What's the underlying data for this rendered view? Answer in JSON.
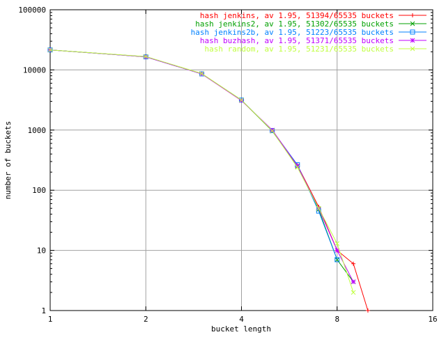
{
  "chart_data": {
    "type": "line",
    "title": "",
    "xlabel": "bucket length",
    "ylabel": "number of buckets",
    "x_scale": "log2",
    "y_scale": "log10",
    "xlim": [
      1,
      16
    ],
    "ylim": [
      1,
      100000
    ],
    "x_ticks": [
      1,
      2,
      4,
      8,
      16
    ],
    "x_tick_labels": [
      "1",
      "2",
      "4",
      "8",
      "16"
    ],
    "y_ticks": [
      1,
      10,
      100,
      1000,
      10000,
      100000
    ],
    "y_tick_labels": [
      "1",
      "10",
      "100",
      "1000",
      "10000",
      "100000"
    ],
    "grid": true,
    "legend_position": "top-right",
    "series": [
      {
        "name": "hash jenkins, av 1.95, 51394/65535 buckets",
        "color": "#ff0000",
        "marker": "plus",
        "x": [
          1,
          2,
          3,
          4,
          5,
          6,
          7,
          8,
          9,
          10
        ],
        "y": [
          21500,
          16500,
          8600,
          3100,
          990,
          260,
          53,
          10,
          6,
          1
        ]
      },
      {
        "name": "hash jenkins2, av 1.95, 51302/65535 buckets",
        "color": "#00a000",
        "marker": "cross",
        "x": [
          1,
          2,
          3,
          4,
          5,
          6,
          7,
          8,
          9
        ],
        "y": [
          21500,
          16600,
          8650,
          3150,
          960,
          250,
          48,
          7,
          3
        ]
      },
      {
        "name": "hash jenkins2b, av 1.95, 51223/65535 buckets",
        "color": "#0080ff",
        "marker": "square",
        "x": [
          1,
          2,
          3,
          4,
          5,
          6,
          7,
          8
        ],
        "y": [
          21500,
          16500,
          8600,
          3150,
          980,
          265,
          45,
          7
        ]
      },
      {
        "name": "hash buzhash, av 1.95, 51371/65535 buckets",
        "color": "#c000ff",
        "marker": "star",
        "x": [
          1,
          2,
          3,
          4,
          5,
          6,
          7,
          8,
          9
        ],
        "y": [
          21500,
          16500,
          8600,
          3100,
          1000,
          255,
          50,
          10,
          3
        ]
      },
      {
        "name": "hash random, av 1.95, 51231/65535 buckets",
        "color": "#c0ff40",
        "marker": "x",
        "x": [
          1,
          2,
          3,
          4,
          5,
          6,
          7,
          8,
          9
        ],
        "y": [
          21500,
          16700,
          8700,
          3150,
          970,
          240,
          50,
          13,
          2
        ]
      }
    ]
  }
}
